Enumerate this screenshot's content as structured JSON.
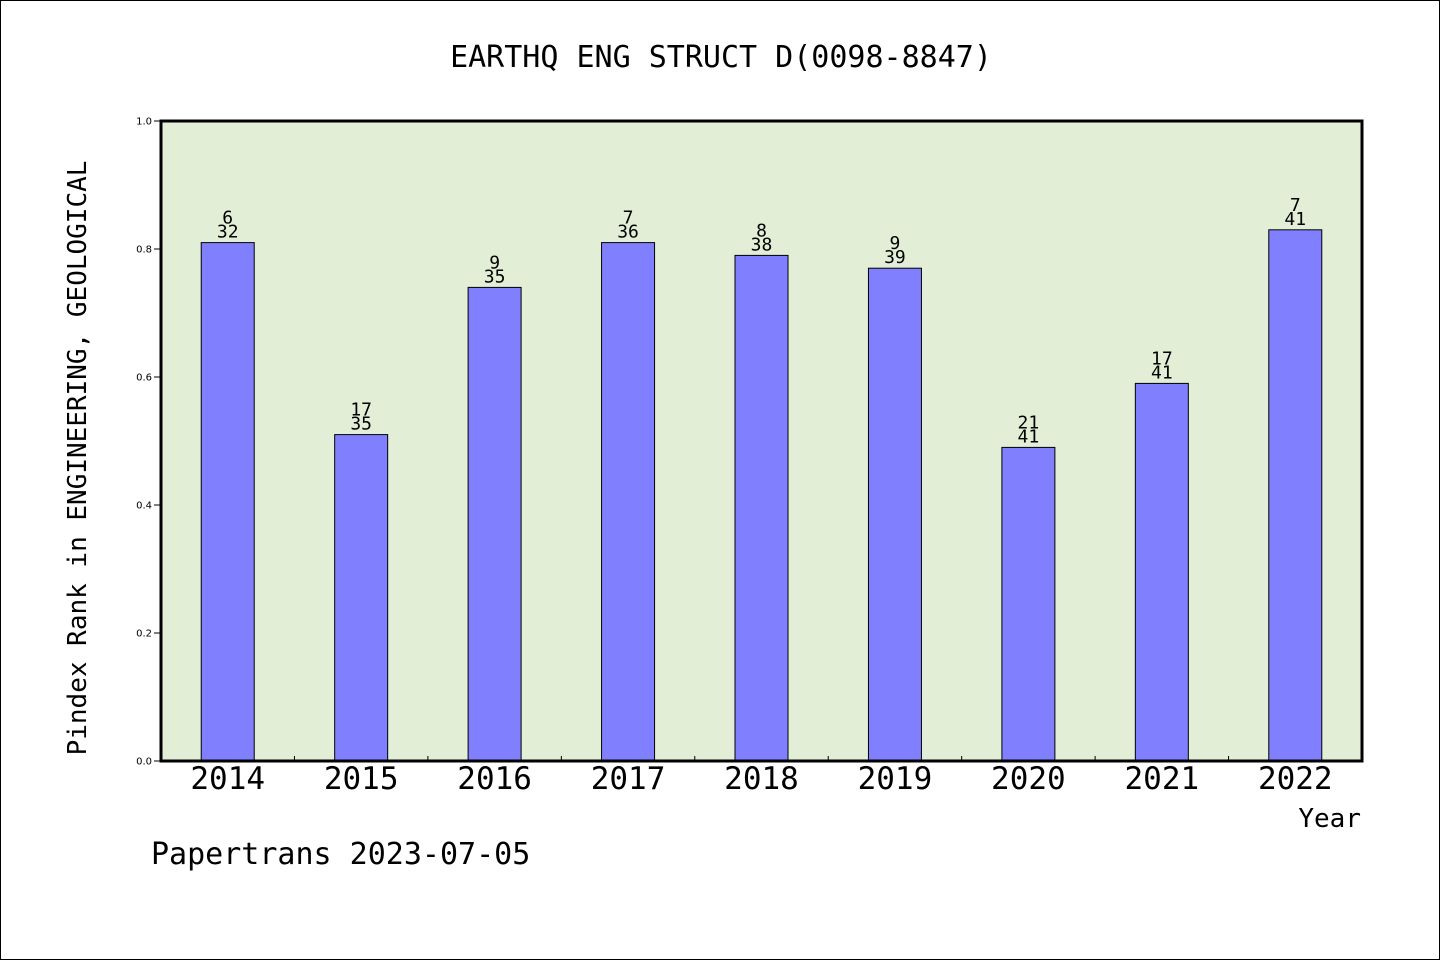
{
  "chart_data": {
    "type": "bar",
    "title": "EARTHQ ENG STRUCT D(0098-8847)",
    "xlabel": "Year",
    "ylabel": "Pindex Rank in ENGINEERING, GEOLOGICAL",
    "ylim": [
      0,
      1.0
    ],
    "yticks": [
      "0.0",
      "0.2",
      "0.4",
      "0.6",
      "0.8",
      "1.0"
    ],
    "grid": false,
    "categories": [
      "2014",
      "2015",
      "2016",
      "2017",
      "2018",
      "2019",
      "2020",
      "2021",
      "2022"
    ],
    "values": [
      0.81,
      0.51,
      0.74,
      0.81,
      0.79,
      0.77,
      0.49,
      0.59,
      0.83
    ],
    "rank_labels": [
      "6",
      "17",
      "9",
      "7",
      "8",
      "9",
      "21",
      "17",
      "7"
    ],
    "total_labels": [
      "32",
      "35",
      "35",
      "36",
      "38",
      "39",
      "41",
      "41",
      "41"
    ],
    "colors": {
      "bar": "#8080ff",
      "plot_background": "#e2efd6",
      "axis": "#000000"
    }
  },
  "footer": {
    "text": "Papertrans 2023-07-05"
  }
}
